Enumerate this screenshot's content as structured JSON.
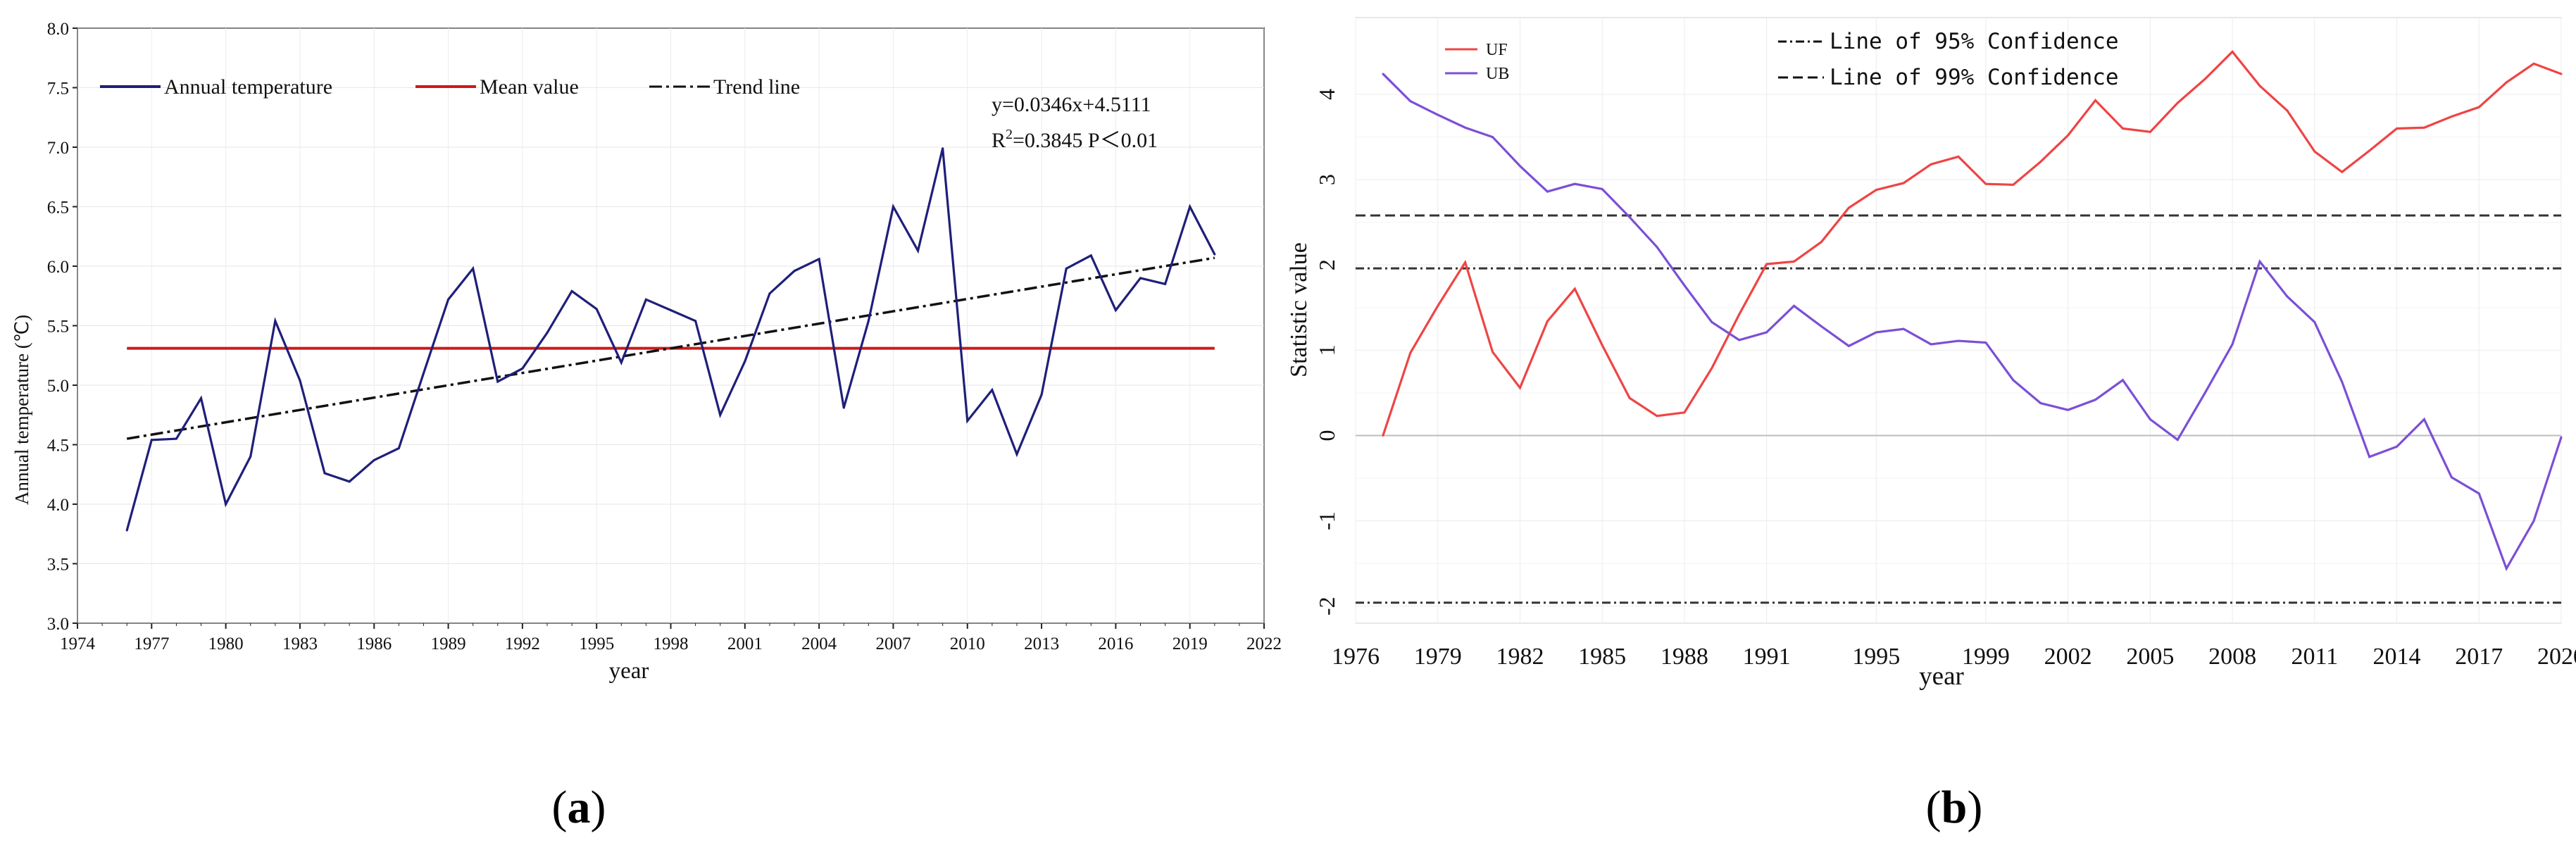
{
  "chart_data": [
    {
      "type": "line",
      "panel_label": "a",
      "xlabel": "year",
      "ylabel": "Annual temperature (℃)",
      "xlim": [
        1974,
        2022
      ],
      "ylim": [
        3.0,
        8.0
      ],
      "x_ticks": [
        1974,
        1977,
        1980,
        1983,
        1986,
        1989,
        1992,
        1995,
        1998,
        2001,
        2004,
        2007,
        2010,
        2013,
        2016,
        2019,
        2022
      ],
      "y_ticks": [
        3.0,
        3.5,
        4.0,
        4.5,
        5.0,
        5.5,
        6.0,
        6.5,
        7.0,
        7.5,
        8.0
      ],
      "grid": true,
      "legend": [
        "Annual temperature",
        "Mean value",
        "Trend line"
      ],
      "annotation": {
        "equation": "y=0.0346x+4.5111",
        "r2_prefix": "R",
        "r2_sup": "2",
        "r2_rest": "=0.3845  P＜0.01"
      },
      "x": [
        1976,
        1977,
        1978,
        1979,
        1980,
        1981,
        1982,
        1983,
        1984,
        1985,
        1986,
        1987,
        1988,
        1989,
        1990,
        1991,
        1992,
        1993,
        1994,
        1995,
        1996,
        1997,
        1998,
        1999,
        2000,
        2001,
        2002,
        2003,
        2004,
        2005,
        2006,
        2007,
        2008,
        2009,
        2010,
        2011,
        2012,
        2013,
        2014,
        2015,
        2016,
        2017,
        2018,
        2019,
        2020
      ],
      "series": [
        {
          "name": "Annual temperature",
          "color": "#1f1f7a",
          "values": [
            3.78,
            4.54,
            4.55,
            4.89,
            4.0,
            4.4,
            5.54,
            5.04,
            4.26,
            4.19,
            4.37,
            4.47,
            5.1,
            5.72,
            5.98,
            5.03,
            5.14,
            5.44,
            5.79,
            5.64,
            5.19,
            5.72,
            5.63,
            5.54,
            4.75,
            5.2,
            5.77,
            5.96,
            6.06,
            4.81,
            5.54,
            6.5,
            6.13,
            6.99,
            4.7,
            4.96,
            4.42,
            4.92,
            5.98,
            6.09,
            5.63,
            5.9,
            5.85,
            6.5,
            6.1
          ]
        },
        {
          "name": "Mean value",
          "color": "#cc1a1a",
          "x": [
            1976,
            2020
          ],
          "values": [
            5.31,
            5.31
          ]
        },
        {
          "name": "Trend line",
          "color": "#111111",
          "x": [
            1976,
            2020
          ],
          "values": [
            4.55,
            6.07
          ]
        }
      ]
    },
    {
      "type": "line",
      "panel_label": "b",
      "xlabel": "year",
      "ylabel": "Statistic value",
      "xlim": [
        1976,
        2020
      ],
      "ylim": [
        -2.2,
        4.9
      ],
      "x_ticks": [
        1976,
        1979,
        1982,
        1985,
        1988,
        1991,
        1995,
        1999,
        2002,
        2005,
        2008,
        2011,
        2014,
        2017,
        2020
      ],
      "y_ticks": [
        -2,
        -1,
        0,
        1,
        2,
        3,
        4
      ],
      "grid": true,
      "legend": [
        "UF",
        "UB"
      ],
      "confidence_legend": [
        "Line of 95% Confidence",
        "Line of 99% Confidence"
      ],
      "confidence_lines": [
        {
          "name": "95%",
          "values": [
            1.96,
            -1.96
          ]
        },
        {
          "name": "99%",
          "values": [
            2.58
          ]
        }
      ],
      "x": [
        1977,
        1978,
        1979,
        1980,
        1981,
        1982,
        1983,
        1984,
        1985,
        1986,
        1987,
        1988,
        1989,
        1990,
        1991,
        1992,
        1993,
        1994,
        1995,
        1996,
        1997,
        1998,
        1999,
        2000,
        2001,
        2002,
        2003,
        2004,
        2005,
        2006,
        2007,
        2008,
        2009,
        2010,
        2011,
        2012,
        2013,
        2014,
        2015,
        2016,
        2017,
        2018,
        2019,
        2020
      ],
      "series": [
        {
          "name": "UF",
          "color": "#ef4444",
          "values": [
            0.0,
            0.97,
            1.52,
            2.03,
            0.98,
            0.56,
            1.34,
            1.72,
            1.06,
            0.44,
            0.23,
            0.27,
            0.79,
            1.42,
            2.01,
            2.04,
            2.27,
            2.67,
            2.88,
            2.96,
            3.18,
            3.27,
            2.95,
            2.94,
            3.21,
            3.52,
            3.93,
            3.6,
            3.56,
            3.9,
            4.18,
            4.5,
            4.1,
            3.81,
            3.33,
            3.09,
            3.34,
            3.6,
            3.61,
            3.74,
            3.85,
            4.14,
            4.36,
            4.24
          ]
        },
        {
          "name": "UB",
          "color": "#7b4fd6",
          "values": [
            4.24,
            3.92,
            3.76,
            3.61,
            3.5,
            3.16,
            2.86,
            2.95,
            2.89,
            2.56,
            2.21,
            1.76,
            1.33,
            1.12,
            1.21,
            1.52,
            1.28,
            1.05,
            1.21,
            1.25,
            1.07,
            1.11,
            1.09,
            0.65,
            0.38,
            0.3,
            0.42,
            0.65,
            0.19,
            -0.05,
            0.5,
            1.07,
            2.04,
            1.63,
            1.33,
            0.63,
            -0.25,
            -0.13,
            0.19,
            -0.49,
            -0.68,
            -1.56,
            -1.0,
            -0.02
          ]
        }
      ]
    }
  ]
}
